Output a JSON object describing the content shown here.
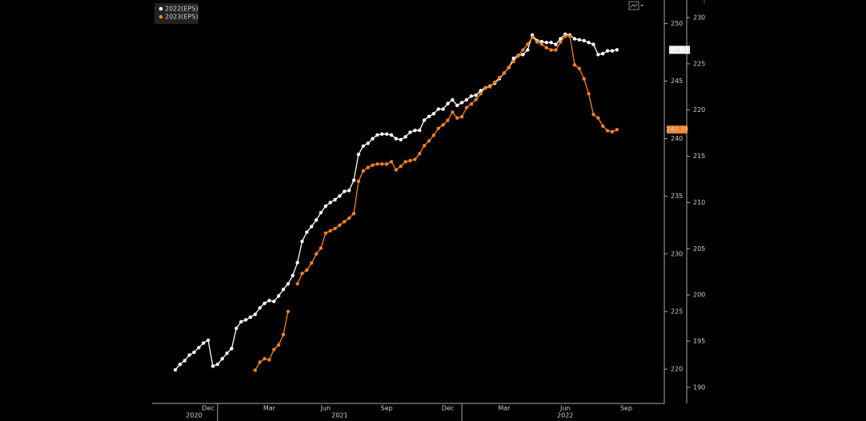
{
  "chart_data": {
    "type": "line",
    "categories": [
      null,
      null,
      null,
      null,
      null,
      null,
      null,
      "Dec",
      null,
      null,
      null,
      null,
      null,
      null,
      null,
      null,
      null,
      null,
      null,
      null,
      "Mar",
      null,
      null,
      null,
      null,
      null,
      null,
      null,
      null,
      null,
      null,
      null,
      "Jun",
      null,
      null,
      null,
      null,
      null,
      null,
      null,
      null,
      null,
      null,
      null,
      null,
      "Sep",
      null,
      null,
      null,
      null,
      null,
      null,
      null,
      null,
      null,
      null,
      null,
      null,
      "Dec",
      null,
      null,
      null,
      null,
      null,
      null,
      null,
      null,
      null,
      null,
      null,
      "Mar",
      null,
      null,
      null,
      null,
      null,
      null,
      null,
      null,
      null,
      null,
      null,
      null,
      "Jun",
      null,
      null,
      null,
      null,
      null,
      null,
      null,
      null,
      null,
      null,
      null,
      null,
      "Sep"
    ],
    "years": [
      "2020",
      "2021",
      "2022"
    ],
    "series": [
      {
        "name": "2022(EPS)",
        "color": "#ffffff",
        "axis": "y2",
        "values": [
          191.9,
          192.5,
          192.9,
          193.5,
          193.8,
          194.3,
          194.8,
          195.1,
          192.3,
          192.5,
          193.1,
          193.7,
          194.2,
          196.4,
          197.1,
          197.3,
          197.6,
          197.9,
          198.6,
          199.1,
          199.4,
          199.3,
          199.9,
          200.6,
          201.2,
          202.1,
          203.5,
          205.8,
          206.8,
          207.4,
          208.1,
          208.9,
          209.6,
          210.0,
          210.3,
          210.7,
          211.2,
          211.3,
          212.4,
          215.2,
          216.1,
          216.4,
          216.9,
          217.3,
          217.4,
          217.4,
          217.3,
          216.9,
          216.8,
          217.1,
          217.6,
          217.8,
          217.8,
          218.9,
          219.3,
          219.6,
          220.1,
          220.1,
          220.7,
          221.1,
          220.5,
          220.8,
          221.1,
          221.5,
          221.6,
          222.1,
          222.4,
          222.6,
          222.9,
          223.4,
          224.0,
          224.6,
          225.6,
          225.9,
          226.0,
          226.5,
          228.1,
          227.5,
          227.4,
          227.3,
          227.3,
          227.1,
          227.7,
          228.2,
          228.1,
          227.7,
          227.6,
          227.5,
          227.3,
          227.1,
          226.0,
          226.1,
          226.4,
          226.4,
          226.51,
          null,
          null
        ]
      },
      {
        "name": "2023(EPS)",
        "color": "#f58220",
        "values": [
          null,
          null,
          null,
          null,
          null,
          null,
          null,
          null,
          null,
          null,
          null,
          null,
          null,
          null,
          null,
          null,
          null,
          219.9,
          220.6,
          220.9,
          220.8,
          221.7,
          222.1,
          223.0,
          225.0,
          null,
          227.4,
          228.3,
          228.6,
          229.2,
          230.0,
          230.5,
          231.8,
          232.0,
          232.2,
          232.5,
          232.8,
          233.1,
          233.5,
          236.3,
          237.2,
          237.5,
          237.7,
          237.8,
          237.8,
          237.8,
          238.0,
          237.3,
          237.6,
          238.0,
          238.1,
          238.2,
          238.7,
          239.4,
          239.8,
          240.3,
          240.9,
          241.2,
          241.6,
          242.3,
          241.8,
          241.9,
          242.7,
          243.0,
          243.4,
          243.9,
          244.4,
          244.5,
          244.9,
          245.3,
          245.7,
          246.2,
          246.7,
          247.2,
          247.7,
          248.2,
          248.8,
          248.4,
          248.2,
          247.9,
          247.7,
          247.7,
          248.4,
          248.9,
          248.9,
          246.4,
          246.1,
          245.2,
          243.9,
          242.1,
          241.8,
          241.1,
          240.7,
          240.6,
          240.79,
          null,
          null
        ]
      }
    ],
    "ylim": [
      217.02,
      252.04
    ],
    "yticks": [
      220,
      225,
      230,
      235,
      240,
      245,
      250
    ],
    "y2lim": [
      188.27,
      231.9
    ],
    "y2ticks": [
      190,
      195,
      200,
      205,
      210,
      215,
      220,
      225,
      230
    ],
    "legend": "top-left"
  }
}
